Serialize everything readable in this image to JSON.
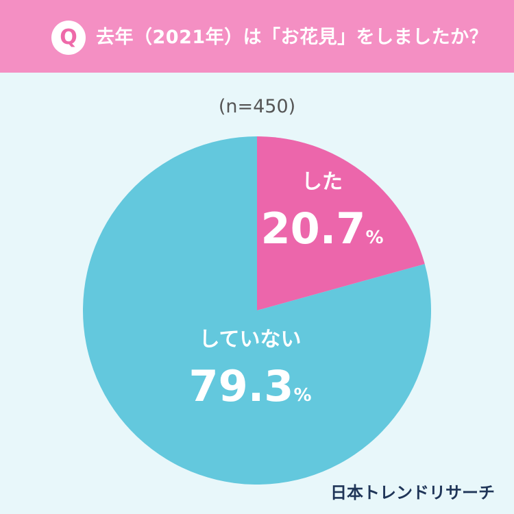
{
  "header": {
    "badge": "Q",
    "question": "去年（2021年）は「お花見」をしましたか？"
  },
  "sample_size": "(n=450)",
  "chart_data": {
    "type": "pie",
    "categories": [
      "した",
      "していない"
    ],
    "values": [
      20.7,
      79.3
    ],
    "unit": "%",
    "colors": [
      "#ec66ab",
      "#63c8dd"
    ],
    "start_angle_deg": 0,
    "direction": "clockwise"
  },
  "brand": "日本トレンドリサーチ"
}
